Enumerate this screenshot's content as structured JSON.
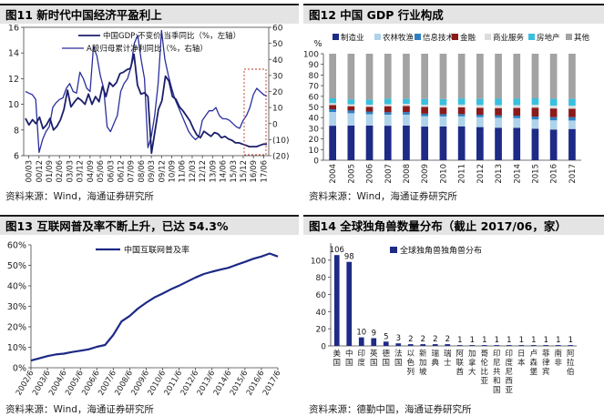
{
  "panels": {
    "p1": {
      "title": "图11 新时代中国经济平盈利上",
      "source": "资料来源：Wind，海通证券研究所"
    },
    "p2": {
      "title": "图12 中国 GDP 行业构成",
      "source": "资料来源：Wind，海通证券研究所"
    },
    "p3": {
      "title": "图13 互联网普及率不断上升，已达  54.3%",
      "source": "资料来源：Wind，海通证券研究所"
    },
    "p4": {
      "title": "图14 全球独角兽数量分布（截止 2017/06，家）",
      "source": "资料来源：德勤中国，海通证券研究所"
    }
  },
  "chart_data": [
    {
      "id": "p1",
      "type": "line",
      "x_ticks": [
        "00/03",
        "00/12",
        "01/09",
        "02/06",
        "03/03",
        "03/12",
        "04/09",
        "05/06",
        "06/03",
        "06/12",
        "07/09",
        "08/06",
        "09/03",
        "09/12",
        "10/09",
        "11/06",
        "12/03",
        "12/12",
        "13/09",
        "14/06",
        "15/03",
        "15/12",
        "16/09",
        "17/06"
      ],
      "left_axis": {
        "ticks": [
          "6",
          "8",
          "10",
          "12",
          "14",
          "16"
        ],
        "range": [
          6,
          16
        ]
      },
      "right_axis": {
        "ticks": [
          "(20)",
          "(10)",
          "0",
          "10",
          "20",
          "30",
          "40",
          "50",
          "60"
        ],
        "range": [
          -20,
          60
        ]
      },
      "series": [
        {
          "name": "中国GDP:不变价:当季同比（%，左轴）",
          "axis": "left",
          "style": "dark-thick",
          "values": [
            8.9,
            8.4,
            8.8,
            8.5,
            9.0,
            8.1,
            8.4,
            8.9,
            8.0,
            8.3,
            8.8,
            9.6,
            11.1,
            9.8,
            10.2,
            10.5,
            10.3,
            10.0,
            10.8,
            10.0,
            10.6,
            10.2,
            11.4,
            10.6,
            11.7,
            11.4,
            11.7,
            12.4,
            12.5,
            12.7,
            12.8,
            13.9,
            11.5,
            10.8,
            10.9,
            10.6,
            6.2,
            7.9,
            9.6,
            10.3,
            12.2,
            11.8,
            10.6,
            10.4,
            9.8,
            9.5,
            9.1,
            8.7,
            8.1,
            7.6,
            7.4,
            7.9,
            7.7,
            7.5,
            7.8,
            7.7,
            7.4,
            7.5,
            7.3,
            7.2,
            7.0,
            7.0,
            6.9,
            6.8,
            6.7,
            6.7,
            6.7,
            6.8,
            6.9,
            6.9
          ]
        },
        {
          "name": "A股归母累计净利同比（%，右轴）",
          "axis": "right",
          "style": "blue-thin",
          "values": [
            20,
            19,
            18,
            15,
            -18,
            -10,
            -5,
            -2,
            10,
            13,
            15,
            16,
            22,
            25,
            20,
            19,
            32,
            28,
            22,
            20,
            48,
            42,
            30,
            22,
            -2,
            -5,
            0,
            5,
            20,
            25,
            28,
            35,
            50,
            55,
            40,
            28,
            -15,
            -8,
            5,
            25,
            58,
            40,
            30,
            22,
            15,
            10,
            5,
            0,
            -5,
            -8,
            -10,
            -8,
            2,
            5,
            8,
            8,
            10,
            5,
            3,
            3,
            2,
            0,
            -2,
            -3,
            2,
            5,
            10,
            18,
            22,
            20,
            18,
            17
          ]
        }
      ]
    },
    {
      "id": "p2",
      "type": "bar",
      "stacked": true,
      "categories": [
        "2004",
        "2005",
        "2006",
        "2007",
        "2008",
        "2009",
        "2010",
        "2011",
        "2012",
        "2013",
        "2014",
        "2015",
        "2016",
        "2017"
      ],
      "y_unit": "%",
      "y_ticks": [
        "0",
        "10",
        "20",
        "30",
        "40",
        "50",
        "60",
        "70",
        "80",
        "90",
        "100"
      ],
      "ylim": [
        0,
        100
      ],
      "series": [
        {
          "name": "制造业",
          "color": "#1d2a86",
          "values": [
            32.4,
            32.5,
            32.5,
            32.4,
            32.6,
            31.6,
            31.6,
            31.8,
            31.1,
            30.5,
            30.4,
            29.5,
            28.8,
            29.3
          ]
        },
        {
          "name": "农林牧渔",
          "color": "#aed3ea",
          "values": [
            12.9,
            11.6,
            10.6,
            10.2,
            10.2,
            9.8,
            9.5,
            9.4,
            9.4,
            9.3,
            9.1,
            8.8,
            8.6,
            7.9
          ]
        },
        {
          "name": "信息技术",
          "color": "#2f7fc1",
          "values": [
            2.6,
            2.6,
            2.6,
            2.5,
            2.4,
            2.3,
            2.2,
            2.2,
            2.2,
            2.3,
            2.4,
            2.7,
            3.0,
            3.2
          ]
        },
        {
          "name": "金融",
          "color": "#8b1a1a",
          "values": [
            3.9,
            4.0,
            4.5,
            5.6,
            5.7,
            6.3,
            6.2,
            6.3,
            6.5,
            6.9,
            7.2,
            8.4,
            8.2,
            7.9
          ]
        },
        {
          "name": "商业服务",
          "color": "#dcdcdc",
          "values": [
            1.8,
            1.9,
            1.9,
            2.0,
            2.1,
            2.0,
            2.2,
            2.5,
            2.6,
            2.6,
            2.6,
            2.6,
            2.7,
            2.8
          ]
        },
        {
          "name": "房地产",
          "color": "#38c0de",
          "values": [
            4.5,
            4.6,
            4.8,
            5.1,
            4.6,
            5.5,
            5.7,
            5.8,
            5.8,
            6.1,
            6.0,
            6.1,
            6.5,
            6.5
          ]
        },
        {
          "name": "其他",
          "color": "#a3a3a3",
          "values": [
            41.9,
            42.8,
            43.1,
            42.2,
            42.4,
            42.5,
            42.6,
            42.0,
            42.4,
            42.3,
            42.3,
            41.9,
            42.2,
            42.4
          ]
        }
      ]
    },
    {
      "id": "p3",
      "type": "line",
      "x_ticks": [
        "2002/6",
        "2003/6",
        "2004/6",
        "2005/6",
        "2006/6",
        "2007/6",
        "2008/6",
        "2009/6",
        "2010/6",
        "2011/6",
        "2012/6",
        "2013/6",
        "2014/6",
        "2015/6",
        "2016/6",
        "2017/6"
      ],
      "y_ticks": [
        "0%",
        "10%",
        "20%",
        "30%",
        "40%",
        "50%",
        "60%"
      ],
      "ylim": [
        0,
        60
      ],
      "series": [
        {
          "name": "中国互联网普及率",
          "color": "#1d2a86",
          "x": [
            2002.5,
            2003.0,
            2003.5,
            2004.0,
            2004.5,
            2005.0,
            2005.5,
            2006.0,
            2006.5,
            2007.0,
            2007.5,
            2008.0,
            2008.5,
            2009.0,
            2009.5,
            2010.0,
            2010.5,
            2011.0,
            2011.5,
            2012.0,
            2012.5,
            2013.0,
            2013.5,
            2014.0,
            2014.5,
            2015.0,
            2015.5,
            2016.0,
            2016.5,
            2017.0,
            2017.5
          ],
          "values": [
            3.5,
            4.6,
            5.7,
            6.5,
            6.9,
            7.7,
            8.3,
            9.0,
            10.2,
            11.1,
            16.0,
            22.6,
            25.3,
            28.9,
            31.8,
            34.3,
            36.2,
            38.3,
            40.1,
            42.1,
            44.1,
            45.8,
            46.9,
            47.9,
            48.8,
            50.3,
            51.7,
            53.2,
            54.3,
            55.8,
            54.3
          ]
        }
      ]
    },
    {
      "id": "p4",
      "type": "bar",
      "categories": [
        "美国",
        "中国",
        "印度",
        "英国",
        "德国",
        "法国",
        "以色列",
        "新加坡",
        "瑞典",
        "瑞士",
        "阿联酋",
        "加拿大",
        "哥伦比亚",
        "印尼共和国",
        "印度尼西亚",
        "日本",
        "卢森堡",
        "菲律宾",
        "南非",
        "阿拉伯"
      ],
      "category_lines": [
        [
          "美",
          "国"
        ],
        [
          "中",
          "国"
        ],
        [
          "印",
          "度"
        ],
        [
          "英",
          "国"
        ],
        [
          "德",
          "国"
        ],
        [
          "法",
          "国"
        ],
        [
          "以",
          "色",
          "列"
        ],
        [
          "新",
          "加",
          "坡"
        ],
        [
          "瑞",
          "典"
        ],
        [
          "瑞",
          "士"
        ],
        [
          "阿",
          "联",
          "酋"
        ],
        [
          "加",
          "拿",
          "大"
        ],
        [
          "哥",
          "伦",
          "比",
          "亚"
        ],
        [
          "印",
          "尼",
          "共",
          "和",
          "国"
        ],
        [
          "印",
          "度",
          "尼",
          "西",
          "亚"
        ],
        [
          "日",
          "本"
        ],
        [
          "卢",
          "森",
          "堡"
        ],
        [
          "菲",
          "律",
          "宾"
        ],
        [
          "南",
          "非"
        ],
        [
          "阿",
          "拉",
          "伯"
        ]
      ],
      "series": [
        {
          "name": "全球独角兽独角兽分布",
          "color": "#1d2a86",
          "values": [
            106,
            98,
            10,
            9,
            5,
            3,
            2,
            2,
            2,
            2,
            1,
            1,
            1,
            1,
            1,
            1,
            1,
            1,
            1,
            1
          ]
        }
      ],
      "data_labels": [
        "106",
        "98",
        "10",
        "9",
        "5",
        "3",
        "2",
        "2",
        "2",
        "2",
        "1",
        "1",
        "1",
        "1",
        "1",
        "1",
        "1",
        "1",
        "1",
        "1"
      ],
      "y_ticks": [
        "0",
        "20",
        "40",
        "60",
        "80",
        "100"
      ],
      "ylim": [
        0,
        120
      ]
    }
  ]
}
